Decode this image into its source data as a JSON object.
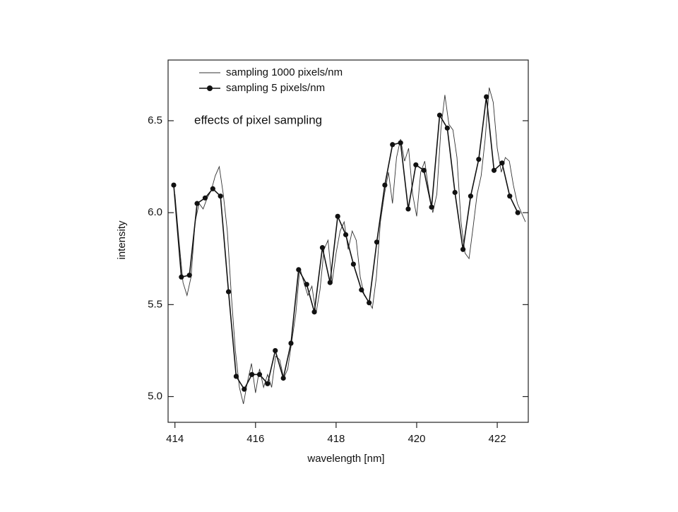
{
  "chart_data": {
    "type": "line",
    "annotation": "effects of pixel sampling",
    "x_label": "wavelength [nm]",
    "y_label": "intensity",
    "xlim": [
      413.83,
      422.77
    ],
    "ylim": [
      4.86,
      6.83
    ],
    "xticks": [
      414,
      416,
      418,
      420,
      422
    ],
    "yticks": [
      {
        "value": 5,
        "label": "5.0"
      },
      5.5,
      {
        "value": 6,
        "label": "6.0"
      },
      6.5
    ],
    "series": [
      {
        "name": "sampling 1000 pixels/nm",
        "color": "#333333",
        "markers": false,
        "x": [
          414.0,
          414.1,
          414.2,
          414.3,
          414.4,
          414.5,
          414.6,
          414.7,
          414.8,
          414.9,
          415.0,
          415.1,
          415.2,
          415.3,
          415.4,
          415.5,
          415.6,
          415.7,
          415.8,
          415.9,
          416.0,
          416.1,
          416.2,
          416.3,
          416.4,
          416.5,
          416.6,
          416.7,
          416.8,
          416.9,
          417.0,
          417.1,
          417.2,
          417.3,
          417.4,
          417.5,
          417.6,
          417.7,
          417.8,
          417.9,
          418.0,
          418.1,
          418.2,
          418.3,
          418.4,
          418.5,
          418.6,
          418.7,
          418.8,
          418.9,
          419.0,
          419.1,
          419.2,
          419.3,
          419.4,
          419.5,
          419.6,
          419.7,
          419.8,
          419.9,
          420.0,
          420.1,
          420.2,
          420.3,
          420.4,
          420.5,
          420.6,
          420.7,
          420.8,
          420.9,
          421.0,
          421.1,
          421.2,
          421.3,
          421.4,
          421.5,
          421.6,
          421.7,
          421.8,
          421.9,
          422.0,
          422.1,
          422.2,
          422.3,
          422.4,
          422.5,
          422.6,
          422.7
        ],
        "values": [
          6.1,
          5.85,
          5.62,
          5.55,
          5.65,
          5.95,
          6.05,
          6.02,
          6.08,
          6.12,
          6.2,
          6.25,
          6.1,
          5.9,
          5.55,
          5.25,
          5.05,
          4.96,
          5.08,
          5.18,
          5.02,
          5.15,
          5.05,
          5.12,
          5.05,
          5.22,
          5.2,
          5.1,
          5.15,
          5.3,
          5.45,
          5.7,
          5.62,
          5.55,
          5.6,
          5.45,
          5.58,
          5.8,
          5.85,
          5.62,
          5.78,
          5.9,
          5.95,
          5.8,
          5.9,
          5.85,
          5.65,
          5.55,
          5.52,
          5.48,
          5.65,
          5.95,
          6.1,
          6.22,
          6.05,
          6.3,
          6.4,
          6.28,
          6.35,
          6.1,
          5.98,
          6.22,
          6.28,
          6.12,
          6.0,
          6.1,
          6.45,
          6.64,
          6.48,
          6.45,
          6.3,
          5.95,
          5.78,
          5.75,
          5.92,
          6.1,
          6.2,
          6.4,
          6.68,
          6.6,
          6.35,
          6.22,
          6.3,
          6.28,
          6.15,
          6.05,
          6.0,
          5.95
        ]
      },
      {
        "name": "sampling 5 pixels/nm",
        "color": "#111111",
        "markers": true,
        "x": [
          413.97,
          414.16,
          414.36,
          414.55,
          414.75,
          414.94,
          415.13,
          415.33,
          415.52,
          415.72,
          415.91,
          416.1,
          416.3,
          416.49,
          416.69,
          416.88,
          417.07,
          417.27,
          417.46,
          417.66,
          417.85,
          418.04,
          418.24,
          418.43,
          418.63,
          418.82,
          419.01,
          419.21,
          419.4,
          419.6,
          419.79,
          419.98,
          420.18,
          420.37,
          420.57,
          420.76,
          420.95,
          421.15,
          421.34,
          421.54,
          421.73,
          421.92,
          422.12,
          422.31,
          422.51
        ],
        "values": [
          6.15,
          5.65,
          5.66,
          6.05,
          6.08,
          6.13,
          6.09,
          5.57,
          5.11,
          5.04,
          5.12,
          5.12,
          5.07,
          5.25,
          5.1,
          5.29,
          5.69,
          5.61,
          5.46,
          5.81,
          5.62,
          5.98,
          5.88,
          5.72,
          5.58,
          5.51,
          5.84,
          6.15,
          6.37,
          6.38,
          6.02,
          6.26,
          6.23,
          6.03,
          6.53,
          6.46,
          6.11,
          5.8,
          6.09,
          6.29,
          6.63,
          6.23,
          6.27,
          6.09,
          6.0
        ]
      }
    ]
  }
}
